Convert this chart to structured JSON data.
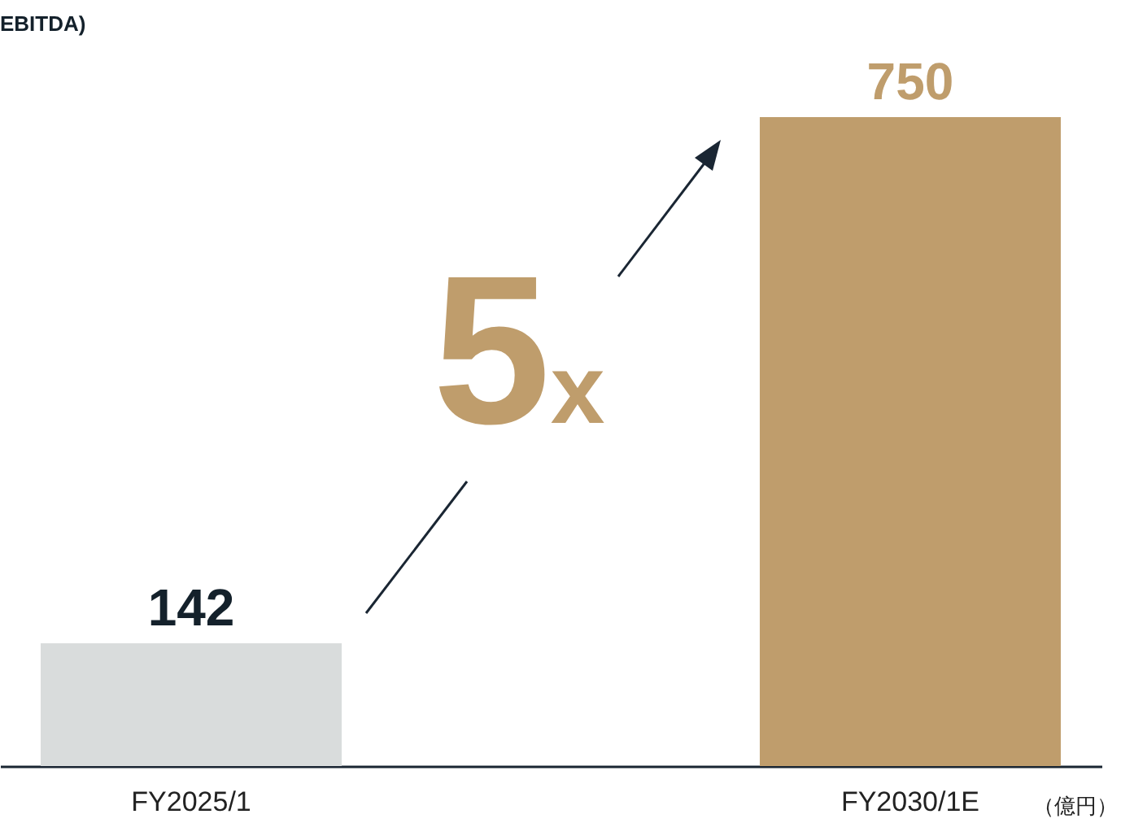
{
  "chart_data": {
    "type": "bar",
    "title": "EBITDA)",
    "categories": [
      "FY2025/1",
      "FY2030/1E"
    ],
    "values": [
      142,
      750
    ],
    "colors": [
      "#d9dcdc",
      "#bf9d6c"
    ],
    "data_labels": true,
    "annotations": [
      "5x",
      "（億円）"
    ]
  }
}
